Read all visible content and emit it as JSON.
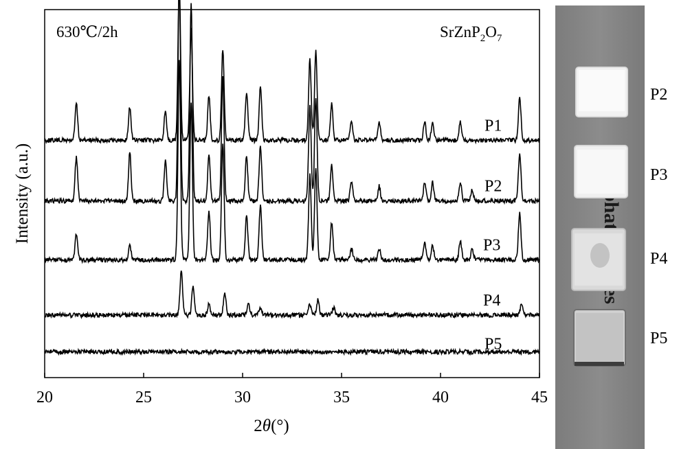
{
  "chart_data": {
    "type": "line",
    "annotation_left": "630℃/2h",
    "formula": {
      "base": "SrZnP",
      "sub1": "2",
      "mid": "O",
      "sub2": "7"
    },
    "xlabel": {
      "pre": "2",
      "italic": "θ",
      "post": "(°)"
    },
    "ylabel": "Intensity (a.u.)",
    "xlim": [
      20,
      45
    ],
    "xticks": [
      20,
      25,
      30,
      35,
      40,
      45
    ],
    "y_axis_ticks": "none",
    "series": [
      {
        "name": "P1",
        "baseline": 0.355,
        "amp": 1.0,
        "peaks": [
          [
            21.6,
            0.1
          ],
          [
            24.3,
            0.09
          ],
          [
            26.1,
            0.08
          ],
          [
            26.8,
            0.43
          ],
          [
            27.4,
            0.31
          ],
          [
            28.3,
            0.12
          ],
          [
            29.0,
            0.25
          ],
          [
            30.2,
            0.13
          ],
          [
            30.9,
            0.15
          ],
          [
            33.4,
            0.22
          ],
          [
            33.7,
            0.24
          ],
          [
            34.5,
            0.1
          ],
          [
            35.5,
            0.05
          ],
          [
            36.9,
            0.05
          ],
          [
            39.2,
            0.05
          ],
          [
            39.6,
            0.05
          ],
          [
            41.0,
            0.05
          ],
          [
            44.0,
            0.12
          ]
        ]
      },
      {
        "name": "P2",
        "baseline": 0.52,
        "amp": 1.0,
        "peaks": [
          [
            21.6,
            0.12
          ],
          [
            24.3,
            0.13
          ],
          [
            26.1,
            0.11
          ],
          [
            26.8,
            0.6
          ],
          [
            27.4,
            0.54
          ],
          [
            28.3,
            0.13
          ],
          [
            29.0,
            0.34
          ],
          [
            30.2,
            0.12
          ],
          [
            30.9,
            0.15
          ],
          [
            33.4,
            0.26
          ],
          [
            33.7,
            0.28
          ],
          [
            34.5,
            0.1
          ],
          [
            35.5,
            0.05
          ],
          [
            36.9,
            0.04
          ],
          [
            39.2,
            0.05
          ],
          [
            39.6,
            0.05
          ],
          [
            41.0,
            0.05
          ],
          [
            41.6,
            0.03
          ],
          [
            44.0,
            0.13
          ]
        ]
      },
      {
        "name": "P3",
        "baseline": 0.68,
        "amp": 1.0,
        "peaks": [
          [
            21.6,
            0.07
          ],
          [
            24.3,
            0.04
          ],
          [
            26.8,
            0.54
          ],
          [
            27.4,
            0.43
          ],
          [
            28.3,
            0.13
          ],
          [
            29.0,
            0.32
          ],
          [
            30.2,
            0.12
          ],
          [
            30.9,
            0.15
          ],
          [
            33.4,
            0.23
          ],
          [
            33.7,
            0.25
          ],
          [
            34.5,
            0.1
          ],
          [
            35.5,
            0.03
          ],
          [
            36.9,
            0.03
          ],
          [
            39.2,
            0.05
          ],
          [
            39.6,
            0.04
          ],
          [
            41.0,
            0.05
          ],
          [
            41.6,
            0.03
          ],
          [
            44.0,
            0.13
          ]
        ]
      },
      {
        "name": "P4",
        "baseline": 0.83,
        "amp": 1.0,
        "peaks": [
          [
            26.9,
            0.12
          ],
          [
            27.5,
            0.08
          ],
          [
            28.3,
            0.03
          ],
          [
            29.1,
            0.06
          ],
          [
            30.3,
            0.03
          ],
          [
            30.9,
            0.02
          ],
          [
            33.4,
            0.03
          ],
          [
            33.8,
            0.04
          ],
          [
            34.6,
            0.02
          ],
          [
            44.1,
            0.03
          ]
        ]
      },
      {
        "name": "P5",
        "baseline": 0.93,
        "amp": 1.0,
        "peaks": []
      }
    ]
  },
  "photo": {
    "engraved_text": "phosphate glasses",
    "samples": [
      "P2",
      "P3",
      "P4",
      "P5"
    ]
  }
}
